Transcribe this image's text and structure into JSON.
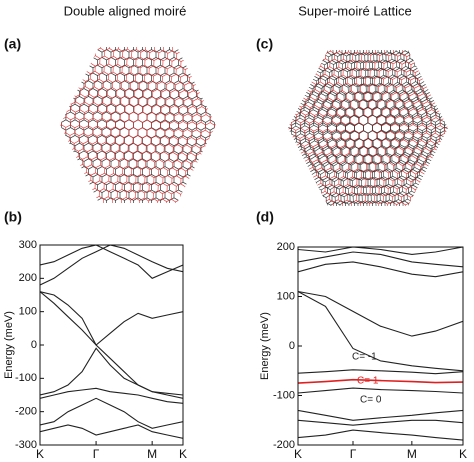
{
  "titles": [
    "Double aligned moiré",
    "Super-moiré Lattice"
  ],
  "panel_labels": [
    "(a)",
    "(b)",
    "(c)",
    "(d)"
  ],
  "chart_data": [
    {
      "type": "line",
      "ylabel": "Energy (meV)",
      "x": [
        0,
        0.25,
        0.5,
        0.75,
        1,
        1.25,
        1.5,
        1.75,
        2,
        2.27,
        2.55
      ],
      "xlim": [
        0,
        2.55
      ],
      "xticks": [
        {
          "value": 0,
          "label": "K"
        },
        {
          "value": 1,
          "label": "Γ"
        },
        {
          "value": 2,
          "label": "M"
        },
        {
          "value": 2.55,
          "label": "K"
        }
      ],
      "ylim": [
        -300,
        300
      ],
      "yticks": [
        -300,
        -200,
        -100,
        0,
        100,
        200,
        300
      ],
      "series": [
        {
          "color": "#222222",
          "values": [
            160,
            125,
            85,
            45,
            0,
            35,
            70,
            95,
            80,
            90,
            100
          ]
        },
        {
          "color": "#222222",
          "values": [
            160,
            150,
            120,
            80,
            0,
            -40,
            -80,
            -120,
            -140,
            -150,
            -160
          ]
        },
        {
          "color": "#222222",
          "values": [
            -150,
            -140,
            -120,
            -80,
            -10,
            -60,
            -100,
            -120,
            -140,
            -145,
            -150
          ]
        },
        {
          "color": "#222222",
          "values": [
            -160,
            -150,
            -140,
            -135,
            -130,
            -140,
            -145,
            -150,
            -160,
            -170,
            -175
          ]
        },
        {
          "color": "#222222",
          "values": [
            240,
            250,
            270,
            290,
            300,
            280,
            260,
            240,
            200,
            220,
            240
          ]
        },
        {
          "color": "#222222",
          "values": [
            180,
            200,
            230,
            260,
            280,
            300,
            290,
            270,
            250,
            230,
            220
          ]
        },
        {
          "color": "#222222",
          "values": [
            -240,
            -230,
            -200,
            -180,
            -160,
            -180,
            -200,
            -230,
            -250,
            -240,
            -230
          ]
        },
        {
          "color": "#222222",
          "values": [
            -260,
            -250,
            -240,
            -250,
            -270,
            -260,
            -250,
            -240,
            -260,
            -270,
            -280
          ]
        }
      ]
    },
    {
      "type": "line",
      "ylabel": "Energy (meV)",
      "x": [
        0,
        0.5,
        1,
        1.5,
        2.07,
        2.5,
        3
      ],
      "xlim": [
        0,
        3
      ],
      "xticks": [
        {
          "value": 0,
          "label": "K"
        },
        {
          "value": 1,
          "label": "Γ"
        },
        {
          "value": 2.07,
          "label": "M"
        },
        {
          "value": 3,
          "label": "K"
        }
      ],
      "ylim": [
        -200,
        200
      ],
      "yticks": [
        -200,
        -100,
        0,
        100,
        200
      ],
      "series": [
        {
          "color": "#222222",
          "values": [
            -55,
            -52,
            -48,
            -50,
            -53,
            -56,
            -52
          ]
        },
        {
          "color": "#e02020",
          "values": [
            -75,
            -72,
            -68,
            -70,
            -72,
            -74,
            -73
          ]
        },
        {
          "color": "#222222",
          "values": [
            -95,
            -90,
            -85,
            -88,
            -90,
            -92,
            -95
          ]
        },
        {
          "color": "#222222",
          "values": [
            -130,
            -140,
            -150,
            -145,
            -140,
            -135,
            -130
          ]
        },
        {
          "color": "#222222",
          "values": [
            -150,
            -155,
            -160,
            -155,
            -150,
            -150,
            -155
          ]
        },
        {
          "color": "#222222",
          "values": [
            -185,
            -180,
            -170,
            -175,
            -180,
            -185,
            -190
          ]
        },
        {
          "color": "#222222",
          "values": [
            110,
            80,
            -5,
            -30,
            -40,
            -45,
            -50
          ]
        },
        {
          "color": "#222222",
          "values": [
            110,
            100,
            70,
            40,
            20,
            30,
            50
          ]
        },
        {
          "color": "#222222",
          "values": [
            150,
            165,
            170,
            160,
            145,
            140,
            150
          ]
        },
        {
          "color": "#222222",
          "values": [
            170,
            180,
            190,
            185,
            170,
            165,
            160
          ]
        },
        {
          "color": "#222222",
          "values": [
            195,
            190,
            200,
            195,
            185,
            190,
            200
          ]
        }
      ],
      "annotations": [
        {
          "text": "C= -1",
          "color": "#222222"
        },
        {
          "text": "C= 1",
          "color": "#e02020"
        },
        {
          "text": "C= 0",
          "color": "#222222"
        }
      ]
    }
  ]
}
